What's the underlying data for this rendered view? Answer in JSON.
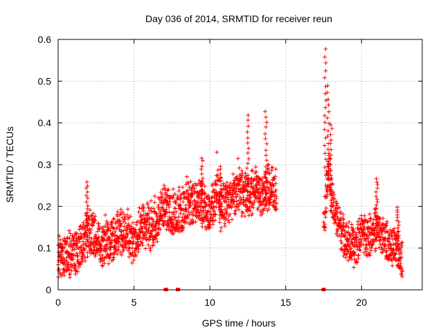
{
  "chart_data": {
    "type": "scatter",
    "title": "Day 036 of 2014, SRMTID for receiver reun",
    "xlabel": "GPS time / hours",
    "ylabel": "SRMTID / TECUs",
    "xlim": [
      0,
      24
    ],
    "ylim": [
      0,
      0.6
    ],
    "x_ticks": [
      0,
      5,
      10,
      15,
      20
    ],
    "x_tick_labels": [
      "0",
      "5",
      "10",
      "15",
      "20"
    ],
    "y_ticks": [
      0,
      0.1,
      0.2,
      0.3,
      0.4,
      0.5,
      0.6
    ],
    "y_tick_labels": [
      "0",
      "0.1",
      "0.2",
      "0.3",
      "0.4",
      "0.5",
      "0.6"
    ],
    "grid": true,
    "marker": "plus",
    "color": "#ff0000",
    "series": [
      {
        "name": "SRMTID",
        "description": "dense noisy measurements, approx. trend sampled by hour",
        "trend": {
          "x": [
            0,
            0.5,
            1,
            1.5,
            2,
            2.5,
            3,
            3.5,
            4,
            4.5,
            5,
            5.5,
            6,
            6.5,
            7,
            7.5,
            8,
            8.5,
            9,
            9.5,
            10,
            10.5,
            11,
            11.5,
            12,
            12.5,
            13,
            13.5,
            14,
            14.4
          ],
          "y": [
            0.07,
            0.08,
            0.09,
            0.1,
            0.14,
            0.12,
            0.11,
            0.12,
            0.13,
            0.14,
            0.11,
            0.16,
            0.15,
            0.16,
            0.2,
            0.19,
            0.18,
            0.2,
            0.21,
            0.22,
            0.18,
            0.24,
            0.2,
            0.22,
            0.24,
            0.22,
            0.24,
            0.22,
            0.25,
            0.22
          ]
        },
        "trend2": {
          "x": [
            17.5,
            17.8,
            18.1,
            18.5,
            19,
            19.5,
            20,
            20.5,
            21,
            21.5,
            22,
            22.5,
            22.7
          ],
          "y": [
            0.15,
            0.3,
            0.2,
            0.16,
            0.12,
            0.1,
            0.14,
            0.13,
            0.15,
            0.12,
            0.1,
            0.09,
            0.08
          ]
        }
      }
    ],
    "peaks": [
      {
        "x": 1.9,
        "y": 0.26
      },
      {
        "x": 9.5,
        "y": 0.32
      },
      {
        "x": 10.7,
        "y": 0.3
      },
      {
        "x": 12.5,
        "y": 0.42
      },
      {
        "x": 13.7,
        "y": 0.43
      },
      {
        "x": 17.6,
        "y": 0.58
      },
      {
        "x": 17.8,
        "y": 0.49
      },
      {
        "x": 18.0,
        "y": 0.4
      },
      {
        "x": 21.0,
        "y": 0.27
      },
      {
        "x": 22.4,
        "y": 0.2
      }
    ],
    "zero_markers": [
      7.1,
      7.9,
      17.5
    ]
  }
}
